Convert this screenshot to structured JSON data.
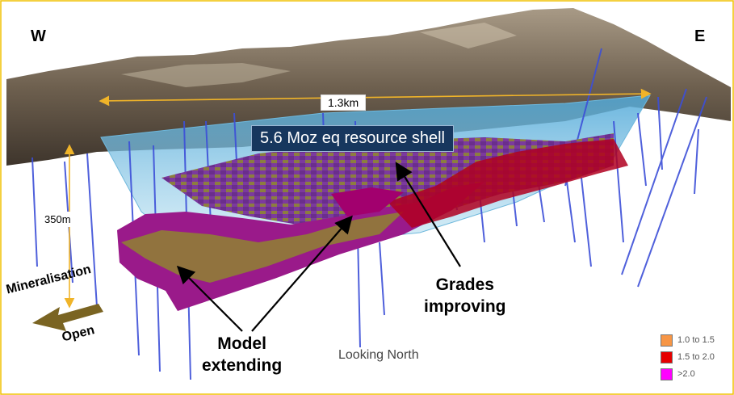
{
  "labels": {
    "west": "W",
    "east": "E",
    "width": "1.3km",
    "depth": "350m",
    "shell": "5.6 Moz eq resource shell",
    "grades_line1": "Grades",
    "grades_line2": "improving",
    "model_line1": "Model",
    "model_line2": "extending",
    "view": "Looking North",
    "mineralisation": "Mineralisation",
    "open": "Open"
  },
  "legend": [
    {
      "label": "1.0 to 1.5",
      "color": "#f79646"
    },
    {
      "label": "1.5 to 2.0",
      "color": "#e60000"
    },
    {
      "label": ">2.0",
      "color": "#ff00ff"
    }
  ],
  "colors": {
    "frame": "#f0c000",
    "dimension_arrows": "#f0b429",
    "drillholes": "#3c4fd8",
    "shell": "#7fc8e6",
    "block_purple": "#8a3aa0",
    "block_olive": "#8e8a2a",
    "block_red": "#b00020",
    "block_magenta": "#a2006e",
    "terrain": "#6b5e4e",
    "open_arrow": "#7a6422"
  },
  "icons": {
    "open_arrow": "arrow-left-down-icon"
  }
}
